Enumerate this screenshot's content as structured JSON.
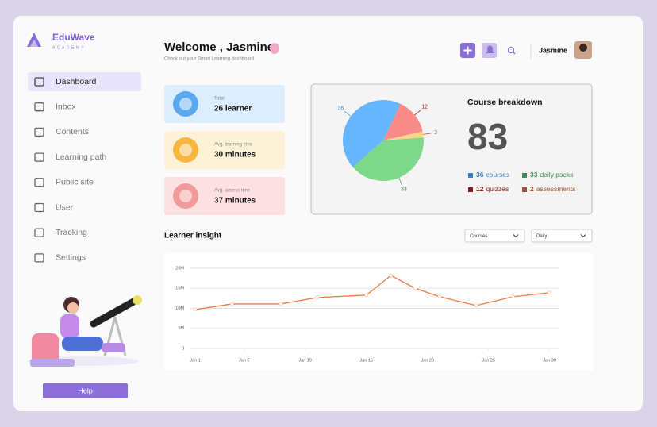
{
  "brand": {
    "name": "EduWave",
    "tagline": "ACADEMY"
  },
  "nav": [
    {
      "label": "Dashboard",
      "active": true
    },
    {
      "label": "Inbox",
      "active": false
    },
    {
      "label": "Contents",
      "active": false
    },
    {
      "label": "Learning path",
      "active": false
    },
    {
      "label": "Public site",
      "active": false
    },
    {
      "label": "User",
      "active": false
    },
    {
      "label": "Tracking",
      "active": false
    },
    {
      "label": "Settings",
      "active": false
    }
  ],
  "help": "Help",
  "header": {
    "title": "Welcome , Jasmine",
    "subtitle": "Check out your Smart Learning dashboard",
    "user": "Jasmine"
  },
  "stats": [
    {
      "label": "Total",
      "value": "26 learner",
      "color": "#dcedfd",
      "icon": "#5aa8ee"
    },
    {
      "label": "Avg. learning time",
      "value": "30 minutes",
      "color": "#fdf1d6",
      "icon": "#f6b73c"
    },
    {
      "label": "Avg. access time",
      "value": "37 minutes",
      "color": "#fde0e2",
      "icon": "#f29a9a"
    }
  ],
  "course_breakdown": {
    "title": "Course breakdown",
    "total": 83,
    "chart": {
      "type": "pie",
      "categories": [
        "quizzes",
        "assessments",
        "daily packs",
        "courses"
      ],
      "values": [
        12,
        2,
        33,
        36
      ],
      "colors": [
        "#f98a8a",
        "#fcd48a",
        "#7dd88a",
        "#66b5ff"
      ],
      "legend_colors": [
        "#8b1a1a",
        "#a0522d",
        "#3f8f4f",
        "#3b82c9"
      ]
    }
  },
  "learner_insight": {
    "title": "Learner insight",
    "filters": [
      "Courses",
      "Daily"
    ],
    "chart": {
      "type": "line",
      "x": [
        1,
        4,
        8,
        11,
        15,
        17,
        19,
        21,
        24,
        27,
        30
      ],
      "series": [
        {
          "color": "#f07a45",
          "values": [
            9700000,
            11100000,
            11100000,
            12700000,
            13300000,
            18200000,
            15000000,
            12900000,
            10700000,
            12900000,
            13900000
          ]
        }
      ],
      "xlim": [
        0.6,
        30.8
      ],
      "ylim": [
        0,
        20000000
      ],
      "xticks": [
        {
          "value": 1,
          "label": "Jan 1"
        },
        {
          "value": 5,
          "label": "Jan 5"
        },
        {
          "value": 10,
          "label": "Jan 10"
        },
        {
          "value": 15,
          "label": "Jan 15"
        },
        {
          "value": 20,
          "label": "Jan 20"
        },
        {
          "value": 25,
          "label": "Jan 25"
        },
        {
          "value": 30,
          "label": "Jan 30"
        }
      ],
      "yticks": [
        0,
        {
          "value": 5000000,
          "label": "5M"
        },
        {
          "value": 10000000,
          "label": "10M"
        },
        {
          "value": 15000000,
          "label": "15M"
        },
        {
          "value": 20000000,
          "label": "20M"
        }
      ],
      "grid": true
    }
  }
}
